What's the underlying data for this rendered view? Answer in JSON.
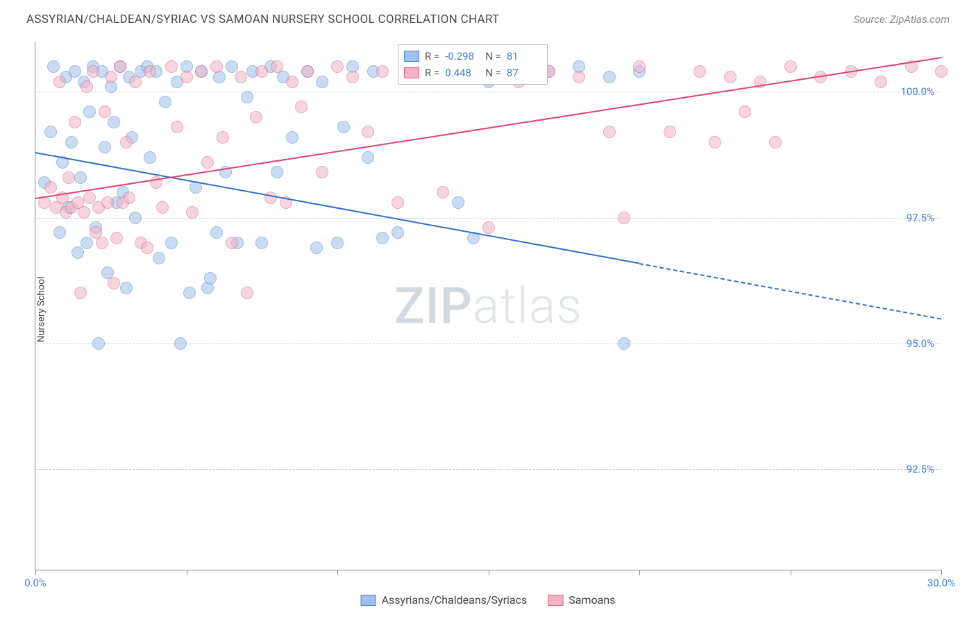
{
  "title": "ASSYRIAN/CHALDEAN/SYRIAC VS SAMOAN NURSERY SCHOOL CORRELATION CHART",
  "source": "Source: ZipAtlas.com",
  "y_axis_label": "Nursery School",
  "watermark_bold": "ZIP",
  "watermark_light": "atlas",
  "chart": {
    "type": "scatter",
    "background_color": "#ffffff",
    "grid_color": "#cccccc",
    "axis_color": "#888888",
    "tick_label_color": "#3b7dd8",
    "tick_fontsize": 15,
    "xlim": [
      0,
      30
    ],
    "ylim": [
      90.5,
      101
    ],
    "x_ticks": [
      0,
      5,
      10,
      15,
      20,
      25,
      30
    ],
    "x_tick_labels": {
      "0": "0.0%",
      "30": "30.0%"
    },
    "y_gridlines": [
      92.5,
      95.0,
      97.5,
      100.0
    ],
    "y_tick_labels": [
      "92.5%",
      "95.0%",
      "97.5%",
      "100.0%"
    ],
    "marker_radius": 9,
    "marker_opacity": 0.55,
    "series": [
      {
        "name": "Assyrians/Chaldeans/Syriacs",
        "color_fill": "#9fc1ec",
        "color_stroke": "#4a86d4",
        "R": "-0.298",
        "N": "81",
        "trend": {
          "x1": 0,
          "y1": 98.8,
          "x2_solid": 20,
          "y2_solid": 96.6,
          "x2_dash": 30,
          "y2_dash": 95.5,
          "color": "#2e6fd0"
        },
        "points": [
          [
            0.3,
            98.2
          ],
          [
            0.5,
            99.2
          ],
          [
            0.6,
            100.5
          ],
          [
            0.8,
            97.2
          ],
          [
            0.9,
            98.6
          ],
          [
            1.0,
            100.3
          ],
          [
            1.1,
            97.7
          ],
          [
            1.2,
            99.0
          ],
          [
            1.3,
            100.4
          ],
          [
            1.4,
            96.8
          ],
          [
            1.5,
            98.3
          ],
          [
            1.6,
            100.2
          ],
          [
            1.7,
            97.0
          ],
          [
            1.8,
            99.6
          ],
          [
            1.9,
            100.5
          ],
          [
            2.0,
            97.3
          ],
          [
            2.1,
            95.0
          ],
          [
            2.2,
            100.4
          ],
          [
            2.3,
            98.9
          ],
          [
            2.4,
            96.4
          ],
          [
            2.5,
            100.1
          ],
          [
            2.6,
            99.4
          ],
          [
            2.7,
            97.8
          ],
          [
            2.8,
            100.5
          ],
          [
            2.9,
            98.0
          ],
          [
            3.0,
            96.1
          ],
          [
            3.1,
            100.3
          ],
          [
            3.2,
            99.1
          ],
          [
            3.3,
            97.5
          ],
          [
            3.5,
            100.4
          ],
          [
            3.7,
            100.5
          ],
          [
            3.8,
            98.7
          ],
          [
            4.0,
            100.4
          ],
          [
            4.1,
            96.7
          ],
          [
            4.3,
            99.8
          ],
          [
            4.5,
            97.0
          ],
          [
            4.7,
            100.2
          ],
          [
            4.8,
            95.0
          ],
          [
            5.0,
            100.5
          ],
          [
            5.1,
            96.0
          ],
          [
            5.3,
            98.1
          ],
          [
            5.5,
            100.4
          ],
          [
            5.7,
            96.1
          ],
          [
            5.8,
            96.3
          ],
          [
            6.0,
            97.2
          ],
          [
            6.1,
            100.3
          ],
          [
            6.3,
            98.4
          ],
          [
            6.5,
            100.5
          ],
          [
            6.7,
            97.0
          ],
          [
            7.0,
            99.9
          ],
          [
            7.2,
            100.4
          ],
          [
            7.5,
            97.0
          ],
          [
            7.8,
            100.5
          ],
          [
            8.0,
            98.4
          ],
          [
            8.2,
            100.3
          ],
          [
            8.5,
            99.1
          ],
          [
            9.0,
            100.4
          ],
          [
            9.3,
            96.9
          ],
          [
            9.5,
            100.2
          ],
          [
            10.0,
            97.0
          ],
          [
            10.2,
            99.3
          ],
          [
            10.5,
            100.5
          ],
          [
            11.0,
            98.7
          ],
          [
            11.2,
            100.4
          ],
          [
            11.5,
            97.1
          ],
          [
            12.0,
            97.2
          ],
          [
            12.5,
            100.3
          ],
          [
            13.0,
            100.5
          ],
          [
            13.5,
            100.4
          ],
          [
            14.0,
            97.8
          ],
          [
            14.5,
            97.1
          ],
          [
            15.0,
            100.2
          ],
          [
            16.0,
            100.3
          ],
          [
            17.0,
            100.4
          ],
          [
            18.0,
            100.5
          ],
          [
            19.0,
            100.3
          ],
          [
            19.5,
            95.0
          ],
          [
            20.0,
            100.4
          ]
        ]
      },
      {
        "name": "Samoans",
        "color_fill": "#f2b4c4",
        "color_stroke": "#e15f85",
        "R": "0.448",
        "N": "87",
        "trend": {
          "x1": 0,
          "y1": 97.9,
          "x2_solid": 30,
          "y2_solid": 100.7,
          "color": "#e14472"
        },
        "points": [
          [
            0.3,
            97.8
          ],
          [
            0.5,
            98.1
          ],
          [
            0.7,
            97.7
          ],
          [
            0.8,
            100.2
          ],
          [
            0.9,
            97.9
          ],
          [
            1.0,
            97.6
          ],
          [
            1.1,
            98.3
          ],
          [
            1.2,
            97.7
          ],
          [
            1.3,
            99.4
          ],
          [
            1.4,
            97.8
          ],
          [
            1.5,
            96.0
          ],
          [
            1.6,
            97.6
          ],
          [
            1.7,
            100.1
          ],
          [
            1.8,
            97.9
          ],
          [
            1.9,
            100.4
          ],
          [
            2.0,
            97.2
          ],
          [
            2.1,
            97.7
          ],
          [
            2.2,
            97.0
          ],
          [
            2.3,
            99.6
          ],
          [
            2.4,
            97.8
          ],
          [
            2.5,
            100.3
          ],
          [
            2.6,
            96.2
          ],
          [
            2.7,
            97.1
          ],
          [
            2.8,
            100.5
          ],
          [
            2.9,
            97.8
          ],
          [
            3.0,
            99.0
          ],
          [
            3.1,
            97.9
          ],
          [
            3.3,
            100.2
          ],
          [
            3.5,
            97.0
          ],
          [
            3.7,
            96.9
          ],
          [
            3.8,
            100.4
          ],
          [
            4.0,
            98.2
          ],
          [
            4.2,
            97.7
          ],
          [
            4.5,
            100.5
          ],
          [
            4.7,
            99.3
          ],
          [
            5.0,
            100.3
          ],
          [
            5.2,
            97.6
          ],
          [
            5.5,
            100.4
          ],
          [
            5.7,
            98.6
          ],
          [
            6.0,
            100.5
          ],
          [
            6.2,
            99.1
          ],
          [
            6.5,
            97.0
          ],
          [
            6.8,
            100.3
          ],
          [
            7.0,
            96.0
          ],
          [
            7.3,
            99.5
          ],
          [
            7.5,
            100.4
          ],
          [
            7.8,
            97.9
          ],
          [
            8.0,
            100.5
          ],
          [
            8.3,
            97.8
          ],
          [
            8.5,
            100.2
          ],
          [
            8.8,
            99.7
          ],
          [
            9.0,
            100.4
          ],
          [
            9.5,
            98.4
          ],
          [
            10.0,
            100.5
          ],
          [
            10.5,
            100.3
          ],
          [
            11.0,
            99.2
          ],
          [
            11.5,
            100.4
          ],
          [
            12.0,
            97.8
          ],
          [
            12.5,
            100.5
          ],
          [
            13.0,
            100.3
          ],
          [
            13.5,
            98.0
          ],
          [
            14.0,
            100.4
          ],
          [
            15.0,
            97.3
          ],
          [
            15.5,
            100.5
          ],
          [
            16.0,
            100.2
          ],
          [
            17.0,
            100.4
          ],
          [
            18.0,
            100.3
          ],
          [
            19.0,
            99.2
          ],
          [
            19.5,
            97.5
          ],
          [
            20.0,
            100.5
          ],
          [
            21.0,
            99.2
          ],
          [
            22.0,
            100.4
          ],
          [
            22.5,
            99.0
          ],
          [
            23.0,
            100.3
          ],
          [
            23.5,
            99.6
          ],
          [
            24.0,
            100.2
          ],
          [
            24.5,
            99.0
          ],
          [
            25.0,
            100.5
          ],
          [
            26.0,
            100.3
          ],
          [
            27.0,
            100.4
          ],
          [
            28.0,
            100.2
          ],
          [
            29.0,
            100.5
          ],
          [
            30.0,
            100.4
          ]
        ]
      }
    ]
  },
  "legend_stats": {
    "label_R": "R =",
    "label_N": "N ="
  }
}
